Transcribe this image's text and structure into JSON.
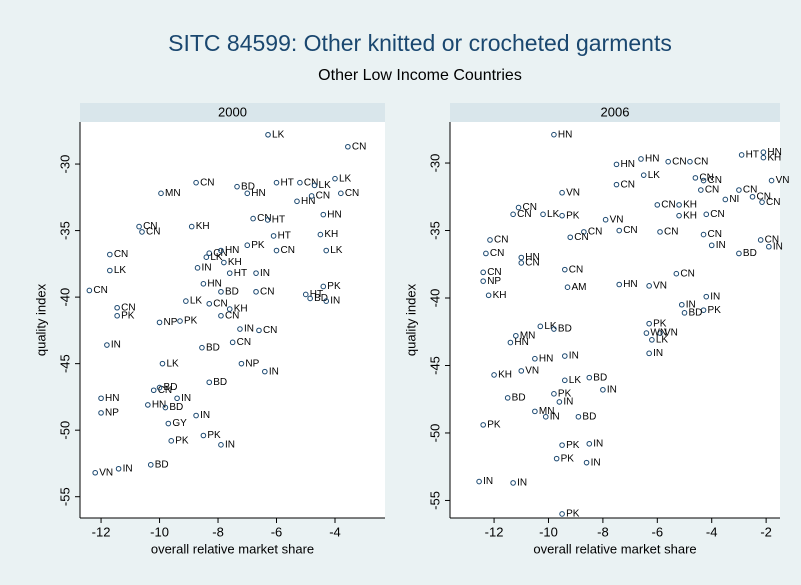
{
  "title": "SITC 84599: Other knitted or crocheted garments",
  "subtitle": "Other Low Income Countries",
  "chart_data": [
    {
      "type": "scatter",
      "title": "2000",
      "xlabel": "overall relative market share",
      "ylabel": "quality index",
      "xlim": [
        -12.72,
        -2.29
      ],
      "ylim": [
        -56.6,
        -26.84
      ],
      "xticks": [
        -12,
        -10,
        -8,
        -6,
        -4
      ],
      "yticks": [
        -30,
        -35,
        -40,
        -45,
        -50,
        -55
      ],
      "labels": [
        "LK",
        "CN",
        "CN",
        "BD",
        "HT",
        "CN",
        "LK",
        "LK",
        "MN",
        "HN",
        "HN",
        "CN",
        "CN",
        "CN",
        "HT",
        "KH",
        "CN",
        "CN",
        "HN",
        "KH",
        "LK",
        "HT",
        "CN",
        "PK",
        "CN",
        "LK",
        "HN",
        "CN",
        "IN",
        "KH",
        "IN",
        "HT",
        "LK",
        "CN",
        "HN",
        "BD",
        "CN",
        "HT",
        "PK",
        "BD",
        "IN",
        "CN",
        "PK",
        "LK",
        "NP",
        "PK",
        "CN",
        "KH",
        "IN",
        "CN",
        "CN",
        "IN",
        "LK",
        "BD",
        "NP",
        "IN",
        "BD",
        "HN",
        "HN",
        "NP",
        "CN",
        "IN",
        "BD",
        "GY",
        "IN",
        "PK",
        "PK",
        "IN",
        "BD",
        "VN",
        "IN",
        "CN",
        "BD"
      ],
      "x": [
        -6.29,
        -3.56,
        -8.75,
        -7.35,
        -6.0,
        -5.2,
        -4.7,
        -4.0,
        -9.95,
        -7.0,
        -5.3,
        -4.8,
        -3.8,
        -6.8,
        -6.3,
        -8.9,
        -10.7,
        -10.6,
        -4.4,
        -4.5,
        -4.3,
        -6.1,
        -11.7,
        -7.0,
        -8.3,
        -8.4,
        -7.9,
        -6.0,
        -8.7,
        -7.8,
        -6.7,
        -7.6,
        -11.7,
        -12.4,
        -8.5,
        -7.9,
        -6.7,
        -5.0,
        -4.4,
        -4.85,
        -4.3,
        -11.45,
        -11.45,
        -9.1,
        -10.0,
        -9.3,
        -7.9,
        -7.6,
        -7.25,
        -7.5,
        -6.6,
        -11.8,
        -9.9,
        -8.55,
        -7.2,
        -6.4,
        -8.3,
        -12.0,
        -10.4,
        -12.0,
        -10.2,
        -9.4,
        -9.8,
        -9.7,
        -8.75,
        -9.6,
        -8.5,
        -7.9,
        -10.3,
        -12.2,
        -11.4,
        -8.3,
        -10.0
      ],
      "y": [
        -27.8,
        -28.7,
        -31.4,
        -31.7,
        -31.4,
        -31.4,
        -31.6,
        -31.1,
        -32.2,
        -32.2,
        -32.8,
        -32.4,
        -32.2,
        -34.1,
        -34.2,
        -34.7,
        -34.7,
        -35.1,
        -33.8,
        -35.3,
        -36.5,
        -35.4,
        -36.8,
        -36.1,
        -36.7,
        -37.0,
        -36.5,
        -36.5,
        -37.8,
        -37.4,
        -38.2,
        -38.2,
        -38.0,
        -39.5,
        -39.0,
        -39.6,
        -39.6,
        -39.8,
        -39.2,
        -40.1,
        -40.3,
        -40.8,
        -41.4,
        -40.3,
        -41.9,
        -41.8,
        -41.4,
        -40.9,
        -42.4,
        -43.4,
        -42.5,
        -43.6,
        -45.0,
        -43.8,
        -45.0,
        -45.6,
        -46.4,
        -47.6,
        -48.1,
        -48.7,
        -47.0,
        -47.6,
        -48.3,
        -49.5,
        -48.9,
        -50.8,
        -50.4,
        -51.1,
        -52.6,
        -53.2,
        -52.9,
        -40.5,
        -46.8
      ]
    },
    {
      "type": "scatter",
      "title": "2006",
      "xlabel": "overall relative market share",
      "ylabel": "quality index",
      "xlim": [
        -13.62,
        -1.49
      ],
      "ylim": [
        -56.3,
        -26.96
      ],
      "xticks": [
        -12,
        -10,
        -8,
        -6,
        -4,
        -2
      ],
      "yticks": [
        -30,
        -35,
        -40,
        -45,
        -50,
        -55
      ],
      "labels": [
        "HN",
        "HN",
        "KH",
        "HT",
        "VN",
        "HN",
        "CN",
        "CN",
        "HN",
        "CN",
        "CN",
        "LK",
        "CN",
        "VN",
        "CN",
        "NI",
        "CN",
        "CN",
        "CN",
        "PK",
        "CN",
        "LK",
        "CN",
        "VN",
        "CN",
        "KH",
        "KH",
        "CN",
        "CN",
        "CN",
        "CN",
        "CN",
        "CN",
        "HN",
        "CN",
        "IN",
        "CN",
        "CN",
        "IN",
        "BD",
        "CN",
        "CN",
        "NP",
        "KH",
        "CN",
        "AM",
        "HN",
        "VN",
        "CN",
        "IN",
        "IN",
        "PK",
        "BD",
        "LK",
        "MN",
        "HN",
        "BD",
        "PK",
        "VN",
        "WN",
        "LK",
        "IN",
        "HN",
        "IN",
        "KH",
        "VN",
        "LK",
        "BD",
        "IN",
        "BD",
        "PK",
        "IN",
        "MN",
        "IN",
        "BD",
        "PK",
        "PK",
        "IN",
        "PK",
        "IN",
        "IN",
        "IN",
        "PK"
      ],
      "x": [
        -9.8,
        -2.1,
        -2.1,
        -2.9,
        -1.8,
        -6.6,
        -5.6,
        -4.8,
        -7.5,
        -4.6,
        -4.3,
        -6.5,
        -7.5,
        -9.5,
        -4.4,
        -3.5,
        -3.0,
        -2.5,
        -2.15,
        -9.5,
        -11.1,
        -10.2,
        -11.3,
        -7.9,
        -6.0,
        -5.2,
        -5.2,
        -4.2,
        -5.9,
        -7.4,
        -8.7,
        -12.15,
        -12.3,
        -11.0,
        -9.2,
        -4.0,
        -4.3,
        -2.2,
        -1.9,
        -3.0,
        -11.0,
        -12.4,
        -12.4,
        -12.2,
        -9.4,
        -9.3,
        -7.4,
        -6.3,
        -5.3,
        -4.2,
        -5.1,
        -4.3,
        -5.0,
        -10.3,
        -11.2,
        -11.4,
        -9.8,
        -6.3,
        -5.9,
        -6.4,
        -6.2,
        -6.3,
        -10.5,
        -9.4,
        -12.0,
        -11.0,
        -9.4,
        -8.5,
        -8.0,
        -11.5,
        -9.8,
        -9.6,
        -10.5,
        -10.1,
        -8.9,
        -12.4,
        -9.5,
        -8.5,
        -9.7,
        -8.6,
        -12.55,
        -11.3,
        -9.5
      ],
      "y": [
        -27.9,
        -29.2,
        -29.6,
        -29.4,
        -31.3,
        -29.7,
        -29.9,
        -29.9,
        -30.1,
        -31.1,
        -31.3,
        -30.9,
        -31.6,
        -32.2,
        -32.0,
        -32.7,
        -32.0,
        -32.5,
        -32.9,
        -33.9,
        -33.3,
        -33.8,
        -33.8,
        -34.2,
        -33.1,
        -33.1,
        -33.9,
        -33.8,
        -35.1,
        -35.0,
        -35.1,
        -35.7,
        -36.7,
        -37.0,
        -35.5,
        -36.1,
        -35.3,
        -35.7,
        -36.2,
        -36.7,
        -37.4,
        -38.1,
        -38.75,
        -39.8,
        -37.9,
        -39.2,
        -39.0,
        -39.1,
        -38.2,
        -39.9,
        -40.5,
        -40.9,
        -41.1,
        -42.1,
        -42.8,
        -43.3,
        -42.3,
        -41.9,
        -42.6,
        -42.6,
        -43.1,
        -44.1,
        -44.5,
        -44.3,
        -45.7,
        -45.4,
        -46.1,
        -45.9,
        -46.8,
        -47.4,
        -47.1,
        -47.7,
        -48.4,
        -48.8,
        -48.8,
        -49.4,
        -50.9,
        -50.8,
        -51.9,
        -52.2,
        -53.6,
        -53.7,
        -56.0
      ]
    }
  ]
}
